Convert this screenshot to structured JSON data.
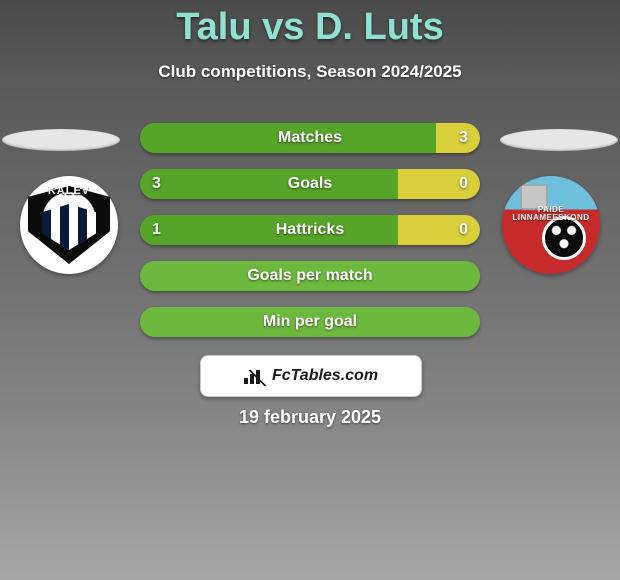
{
  "title": "Talu vs D. Luts",
  "subtitle": "Club competitions, Season 2024/2025",
  "date": "19 february 2025",
  "attribution": "FcTables.com",
  "colors": {
    "accent_title": "#8fe2d2",
    "row_green": "#56a528",
    "row_green_alt": "#6db93e",
    "row_yellow": "#d9cf3b",
    "background_top": "#4a4a4a",
    "background_bottom": "#a7a7a7",
    "white": "#ffffff"
  },
  "crests": {
    "left_label": "KALEV",
    "right_label_line1": "PAIDE",
    "right_label_line2": "LINNAMEESKOND"
  },
  "rows": [
    {
      "label": "Matches",
      "left_value": "",
      "right_value": "3",
      "left_pct": 87,
      "right_pct": 13,
      "left_color": "#56a528",
      "right_color": "#d9cf3b"
    },
    {
      "label": "Goals",
      "left_value": "3",
      "right_value": "0",
      "left_pct": 76,
      "right_pct": 24,
      "left_color": "#56a528",
      "right_color": "#d9cf3b"
    },
    {
      "label": "Hattricks",
      "left_value": "1",
      "right_value": "0",
      "left_pct": 76,
      "right_pct": 24,
      "left_color": "#56a528",
      "right_color": "#d9cf3b"
    },
    {
      "label": "Goals per match",
      "left_value": "",
      "right_value": "",
      "left_pct": 100,
      "right_pct": 0,
      "left_color": "#6db93e",
      "right_color": "#d9cf3b"
    },
    {
      "label": "Min per goal",
      "left_value": "",
      "right_value": "",
      "left_pct": 100,
      "right_pct": 0,
      "left_color": "#6db93e",
      "right_color": "#d9cf3b"
    }
  ]
}
